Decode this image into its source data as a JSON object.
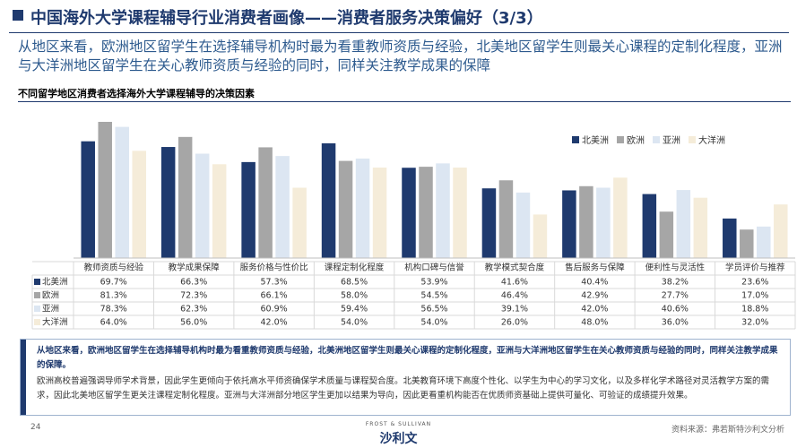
{
  "header": {
    "title": "中国海外大学课程辅导行业消费者画像——消费者服务决策偏好（3/3）",
    "subtitle": "从地区来看，欧洲地区留学生在选择辅导机构时最为看重教师资质与经验，北美地区留学生则最关心课程的定制化程度，亚洲与大洋洲地区留学生在关心教师资质与经验的同时，同样关注教学成果的保障"
  },
  "chart_data": {
    "type": "bar",
    "title": "不同留学地区消费者选择海外大学课程辅导的决策因素",
    "categories": [
      "教师资质与经验",
      "教学成果保障",
      "服务价格与性价比",
      "课程定制化程度",
      "机构口碑与信誉",
      "教学模式契合度",
      "售后服务与保障",
      "便利性与灵活性",
      "学员评价与推荐"
    ],
    "series": [
      {
        "name": "北美洲",
        "color": "#1f3a6e",
        "values": [
          69.7,
          66.3,
          57.3,
          68.5,
          53.9,
          41.6,
          40.4,
          38.2,
          23.6
        ],
        "value_labels": [
          "69.7%",
          "66.3%",
          "57.3%",
          "68.5%",
          "53.9%",
          "41.6%",
          "40.4%",
          "38.2%",
          "23.6%"
        ]
      },
      {
        "name": "欧洲",
        "color": "#a6a6a6",
        "values": [
          81.3,
          72.3,
          66.1,
          58.0,
          54.5,
          46.4,
          42.9,
          27.7,
          17.0
        ],
        "value_labels": [
          "81.3%",
          "72.3%",
          "66.1%",
          "58.0%",
          "54.5%",
          "46.4%",
          "42.9%",
          "27.7%",
          "17.0%"
        ]
      },
      {
        "name": "亚洲",
        "color": "#dce6f2",
        "values": [
          78.3,
          62.3,
          60.9,
          59.4,
          56.5,
          39.1,
          42.0,
          40.6,
          18.8
        ],
        "value_labels": [
          "78.3%",
          "62.3%",
          "60.9%",
          "59.4%",
          "56.5%",
          "39.1%",
          "42.0%",
          "40.6%",
          "18.8%"
        ]
      },
      {
        "name": "大洋洲",
        "color": "#f5ecd9",
        "values": [
          64.0,
          56.0,
          42.0,
          54.0,
          54.0,
          26.0,
          48.0,
          36.0,
          32.0
        ],
        "value_labels": [
          "64.0%",
          "56.0%",
          "42.0%",
          "54.0%",
          "54.0%",
          "26.0%",
          "48.0%",
          "36.0%",
          "32.0%"
        ]
      }
    ],
    "legend": "top-right"
  },
  "notes": [
    "从地区来看，欧洲地区留学生在选择辅导机构时最为看重教师资质与经验，北美洲地区留学生则最关心课程的定制化程度，亚洲与大洋洲地区留学生在关心教师资质与经验的同时，同样关注教学成果的保障。",
    "欧洲高校普遍强调导师学术背景，因此学生更倾向于依托高水平师资确保学术质量与课程契合度。北美教育环境下高度个性化、以学生为中心的学习文化，以及多样化学术路径对灵活教学方案的需求，因此北美地区留学生更关注课程定制化程度。亚洲与大洋洲部分地区学生更加以结果为导向，因此更看重机构能否在优质师资基础上提供可量化、可验证的成绩提升效果。"
  ],
  "footer": {
    "page": "24",
    "brand": "FROST & SULLIVAN",
    "logo": "沙利文",
    "source": "资料来源：弗若斯特沙利文分析"
  }
}
